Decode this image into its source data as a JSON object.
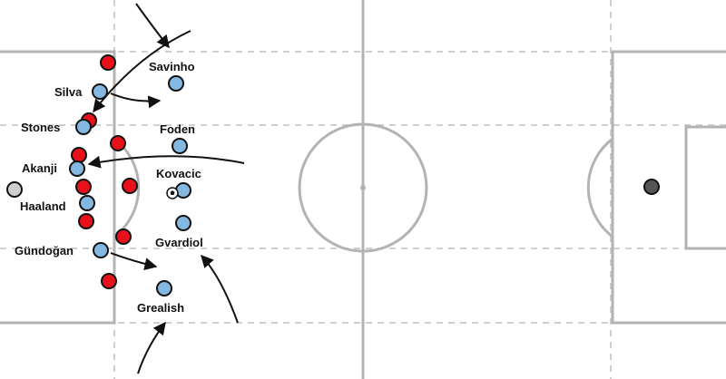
{
  "colors": {
    "pitch_lines": "#b3b3b3",
    "zone_lines": "#cfcfcf",
    "team_blue": "#85b8e0",
    "team_red": "#e8101a",
    "goalkeeper_left": "#cfcfcf",
    "goalkeeper_right": "#555555",
    "outline": "#111111",
    "arrow": "#111111"
  },
  "players": {
    "savinho": {
      "label": "Savinho"
    },
    "silva": {
      "label": "Silva"
    },
    "stones": {
      "label": "Stones"
    },
    "foden": {
      "label": "Foden"
    },
    "akanji": {
      "label": "Akanji"
    },
    "kovacic": {
      "label": "Kovacic"
    },
    "haaland": {
      "label": "Haaland"
    },
    "gundogan": {
      "label": "Gündoğan"
    },
    "gvardiol": {
      "label": "Gvardiol"
    },
    "grealish": {
      "label": "Grealish"
    }
  },
  "icons": {
    "ball": "football-icon"
  }
}
